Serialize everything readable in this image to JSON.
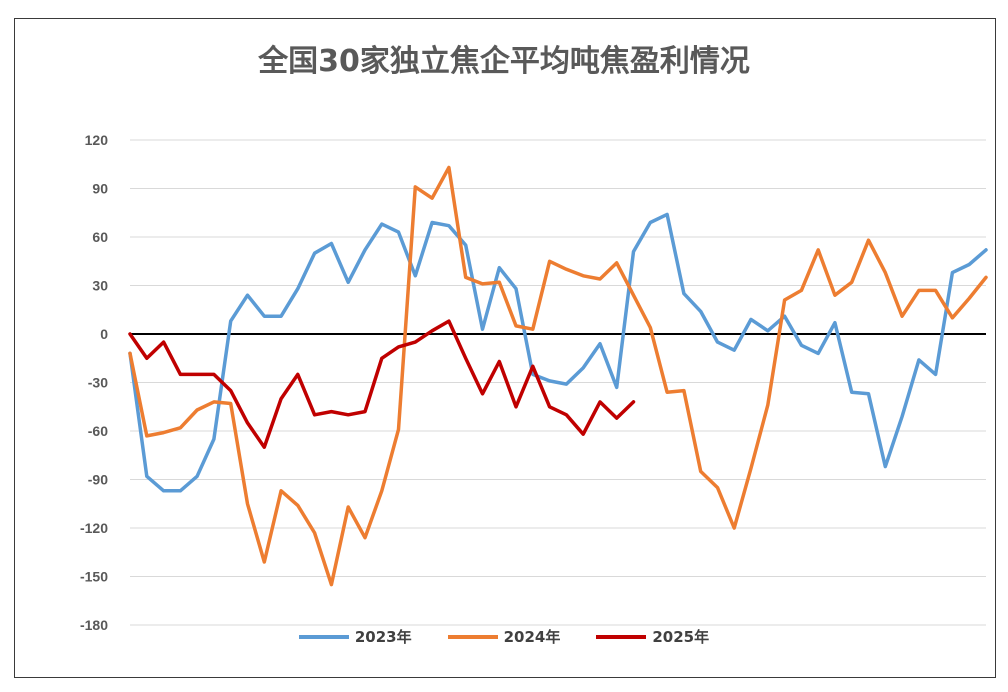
{
  "chart_data": {
    "type": "line",
    "title": "全国30家独立焦企平均吨焦盈利情况",
    "xlabel": "",
    "ylabel": "",
    "ylim": [
      -180,
      120
    ],
    "yticks": [
      120,
      90,
      60,
      30,
      0,
      -30,
      -60,
      -90,
      -120,
      -150,
      -180
    ],
    "x_count": 52,
    "grid": true,
    "legend_position": "bottom",
    "series": [
      {
        "name": "2023年",
        "color": "#5b9bd5",
        "values": [
          -12,
          -88,
          -97,
          -97,
          -88,
          -65,
          8,
          24,
          11,
          11,
          28,
          50,
          56,
          32,
          52,
          68,
          63,
          36,
          69,
          67,
          55,
          3,
          41,
          28,
          -25,
          -29,
          -31,
          -21,
          -6,
          -33,
          51,
          69,
          74,
          25,
          14,
          -5,
          -10,
          9,
          2,
          11,
          -7,
          -12,
          7,
          -36,
          -37,
          -82,
          -51,
          -16,
          -25,
          38,
          43,
          52
        ]
      },
      {
        "name": "2024年",
        "color": "#ed7d31",
        "values": [
          -12,
          -63,
          -61,
          -58,
          -47,
          -42,
          -43,
          -105,
          -141,
          -97,
          -106,
          -123,
          -155,
          -107,
          -126,
          -97,
          -59,
          91,
          84,
          103,
          35,
          31,
          32,
          5,
          3,
          45,
          40,
          36,
          34,
          44,
          24,
          4,
          -36,
          -35,
          -85,
          -95,
          -120,
          -83,
          -44,
          21,
          27,
          52,
          24,
          32,
          58,
          38,
          11,
          27,
          27,
          10,
          22,
          35
        ]
      },
      {
        "name": "2025年",
        "color": "#c00000",
        "values": [
          0,
          -15,
          -5,
          -25,
          -25,
          -25,
          -35,
          -55,
          -70,
          -40,
          -25,
          -50,
          -48,
          -50,
          -48,
          -15,
          -8,
          -5,
          2,
          8,
          -15,
          -37,
          -17,
          -45,
          -20,
          -45,
          -50,
          -62,
          -42,
          -52,
          -42
        ]
      }
    ]
  }
}
